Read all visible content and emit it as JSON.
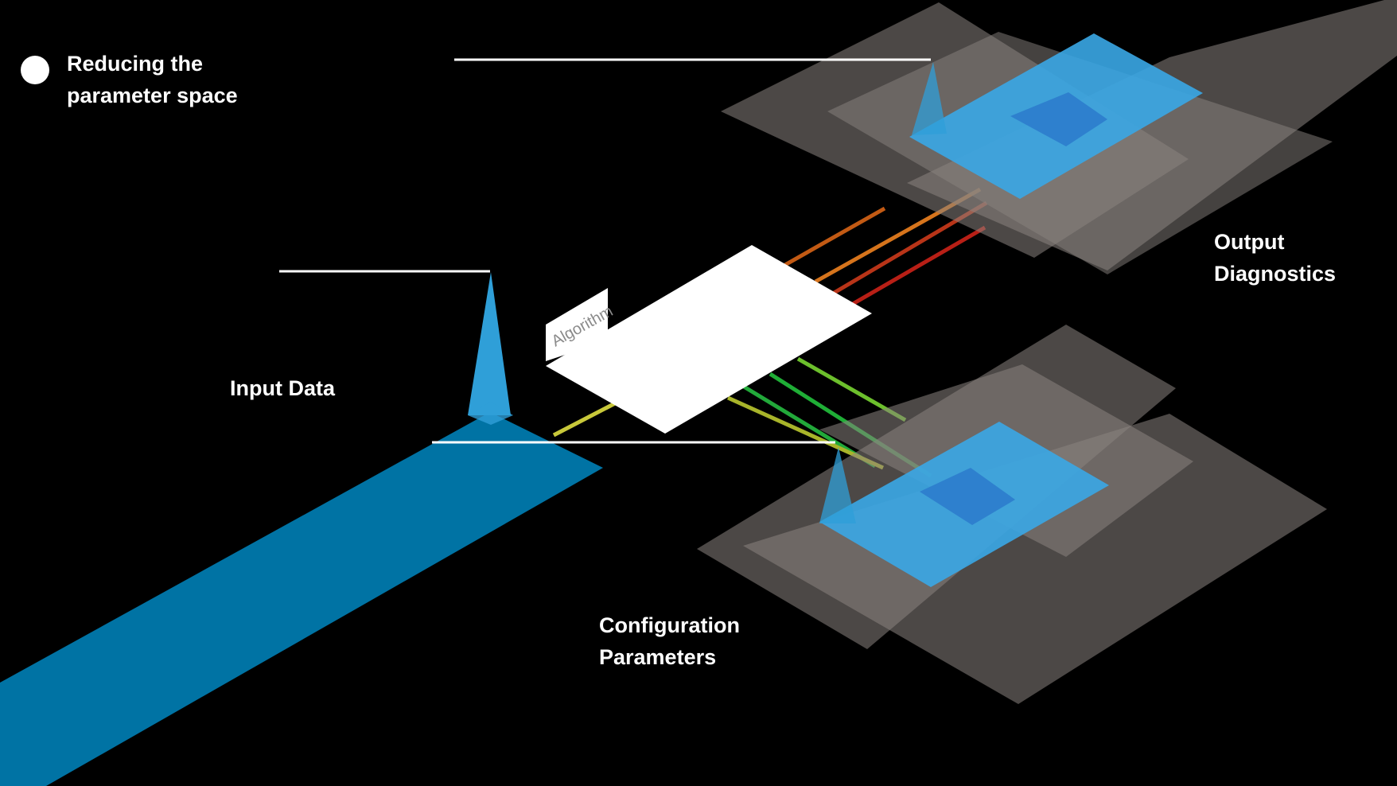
{
  "title": {
    "line1": "Reducing the",
    "line2": "parameter space"
  },
  "labels": {
    "input_data": "Input Data",
    "output": {
      "line1": "Output",
      "line2": "Diagnostics"
    },
    "config": {
      "line1": "Configuration",
      "line2": "Parameters"
    },
    "algorithm": "Algorithm"
  },
  "colors": {
    "background": "#000000",
    "input_stream": "#0073a4",
    "peak": "#2f9fd8",
    "plane_gray": "#8a8380",
    "plane_blue": "#3aa7e6",
    "plane_blue_core": "#2c7ccc",
    "algorithm_box": "#ffffff",
    "callout_line": "#ffffff",
    "output_lines": [
      "#c25a14",
      "#d6741c",
      "#b83418",
      "#b81f16"
    ],
    "config_lines": [
      "#6cbf2c",
      "#1fae36",
      "#22a93a",
      "#a8b42a",
      "#c8c83a"
    ]
  },
  "icons": {
    "title_bullet": "bullet-dot-icon"
  }
}
